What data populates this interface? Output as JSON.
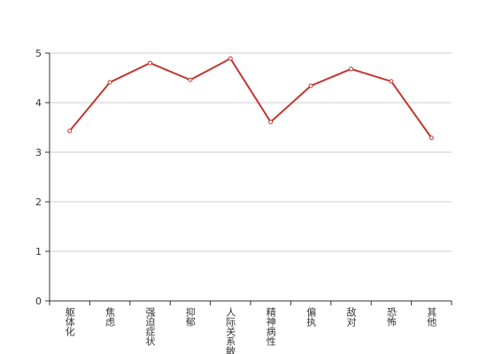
{
  "chart_data": {
    "type": "line",
    "categories": [
      "躯体化",
      "焦虑",
      "强迫症状",
      "抑郁",
      "人际关系敏感",
      "精神病性",
      "偏执",
      "敌对",
      "恐怖",
      "其他"
    ],
    "series": [
      {
        "color": "#c23531",
        "values": [
          3.43,
          4.41,
          4.8,
          4.46,
          4.89,
          3.61,
          4.34,
          4.68,
          4.43,
          3.29
        ]
      }
    ],
    "ylim": [
      0,
      5
    ],
    "yticks": [
      0,
      1,
      2,
      3,
      4,
      5
    ],
    "grid": true
  }
}
